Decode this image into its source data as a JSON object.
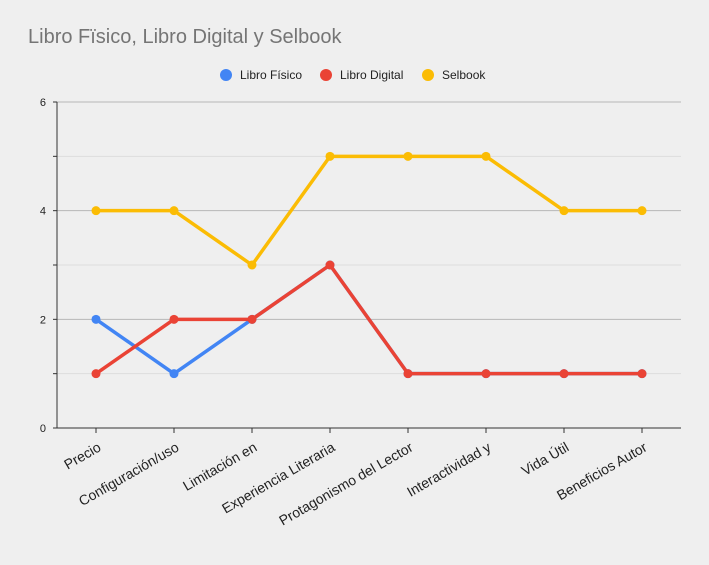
{
  "chart_data": {
    "type": "line",
    "title": "Libro Fïsico, Libro Digital y Selbook",
    "xlabel": "",
    "ylabel": "",
    "categories": [
      "Precio",
      "Configuración/uso",
      "Limitación en",
      "Experiencia Literaria",
      "Protagonismo del Lector",
      "Interactividad y",
      "Vida Útil",
      "Beneficios Autor"
    ],
    "ylim": [
      0,
      6
    ],
    "yticks": [
      0,
      2,
      4,
      6
    ],
    "grid": true,
    "legend_position": "top",
    "series": [
      {
        "name": "Libro Físico",
        "color": "#4285f4",
        "values": [
          2,
          1,
          2,
          3,
          1,
          1,
          1,
          1
        ]
      },
      {
        "name": "Libro Digital",
        "color": "#ea4335",
        "values": [
          1,
          2,
          2,
          3,
          1,
          1,
          1,
          1
        ]
      },
      {
        "name": "Selbook",
        "color": "#fbbc04",
        "values": [
          4,
          4,
          3,
          5,
          5,
          5,
          4,
          4
        ]
      }
    ]
  }
}
